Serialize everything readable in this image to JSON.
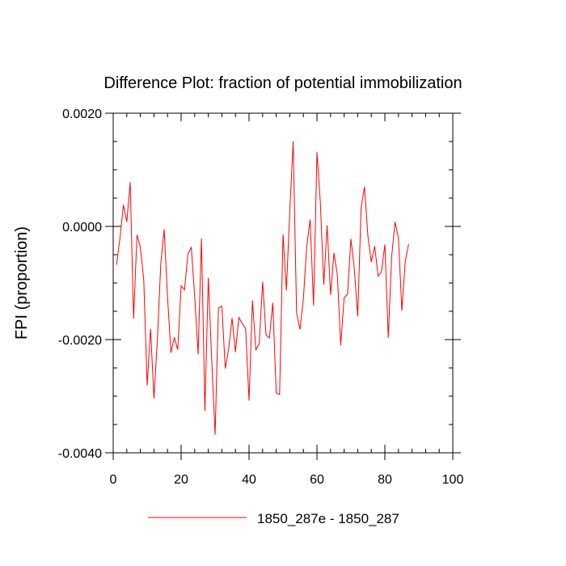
{
  "chart_data": {
    "type": "line",
    "title": "Difference Plot: fraction of potential immobilization",
    "xlabel": "",
    "ylabel": "FPI  (proportion)",
    "xlim": [
      0,
      100
    ],
    "ylim": [
      -0.004,
      0.002
    ],
    "x_ticks": [
      0,
      20,
      40,
      60,
      80,
      100
    ],
    "x_tick_labels": [
      "0",
      "20",
      "40",
      "60",
      "80",
      "100"
    ],
    "y_ticks": [
      0.002,
      0.0,
      -0.002,
      -0.004
    ],
    "y_tick_labels": [
      "0.0020",
      "0.0000",
      "-0.0020",
      "-0.0040"
    ],
    "grid": false,
    "legend_position": "bottom-center",
    "series": [
      {
        "name": "1850_287e - 1850_287",
        "color": "#ff0000",
        "x": [
          1,
          2,
          3,
          4,
          5,
          6,
          7,
          8,
          9,
          10,
          11,
          12,
          13,
          14,
          15,
          16,
          17,
          18,
          19,
          20,
          21,
          22,
          23,
          24,
          25,
          26,
          27,
          28,
          29,
          30,
          31,
          32,
          33,
          34,
          35,
          36,
          37,
          38,
          39,
          40,
          41,
          42,
          43,
          44,
          45,
          46,
          47,
          48,
          49,
          50,
          51,
          52,
          53,
          54,
          55,
          56,
          57,
          58,
          59,
          60,
          61,
          62,
          63,
          64,
          65,
          66,
          67,
          68,
          69,
          70,
          71,
          72,
          73,
          74,
          75,
          76,
          77,
          78,
          79,
          80,
          81,
          82,
          83,
          84,
          85,
          86,
          87
        ],
        "values": [
          -0.00068,
          -0.0002,
          0.00038,
          8e-05,
          0.00078,
          -0.00163,
          -0.00015,
          -0.00037,
          -0.00095,
          -0.00281,
          -0.00181,
          -0.00304,
          -0.00201,
          -0.00067,
          -5e-05,
          -0.00125,
          -0.00223,
          -0.00196,
          -0.00218,
          -0.00105,
          -0.00112,
          -0.00048,
          -0.00037,
          -0.00124,
          -0.00226,
          -0.00021,
          -0.00326,
          -0.00091,
          -0.00235,
          -0.00368,
          -0.00144,
          -0.00141,
          -0.00251,
          -0.00216,
          -0.00162,
          -0.00222,
          -0.00161,
          -0.00171,
          -0.00181,
          -0.00308,
          -0.00131,
          -0.00218,
          -0.00207,
          -0.00098,
          -0.00192,
          -0.00197,
          -0.00135,
          -0.00294,
          -0.00297,
          -0.00014,
          -0.00113,
          0.00028,
          0.0015,
          -0.00153,
          -0.00182,
          -0.00128,
          -0.00034,
          0.00012,
          -0.0014,
          0.00131,
          0.00042,
          -0.00103,
          2e-05,
          -0.00121,
          -0.00047,
          -0.00085,
          -0.0021,
          -0.00126,
          -0.0012,
          -0.00022,
          -0.00075,
          -0.00159,
          0.00033,
          0.0007,
          -0.00017,
          -0.00063,
          -0.00035,
          -0.00088,
          -0.0008,
          -0.00032,
          -0.00197,
          -0.00053,
          8e-05,
          -0.00021,
          -0.00149,
          -0.00062,
          -0.00031
        ]
      }
    ]
  }
}
